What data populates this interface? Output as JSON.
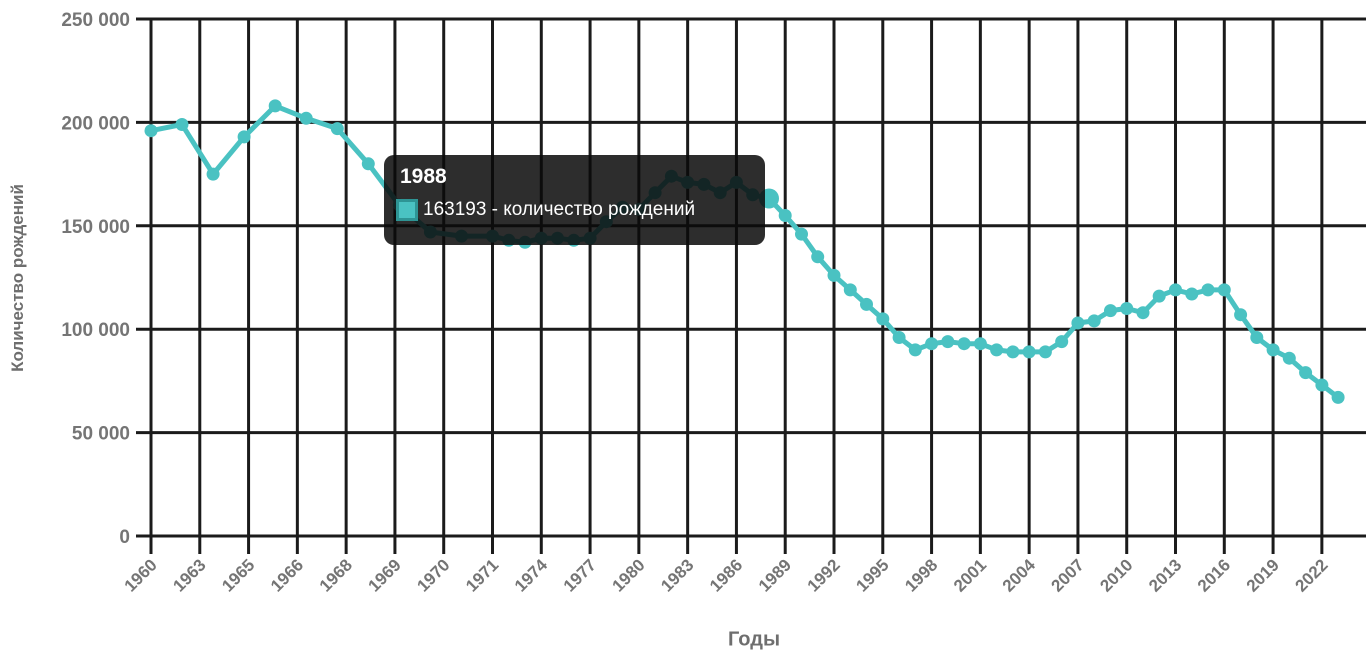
{
  "chart_data": {
    "type": "line",
    "title": "",
    "xlabel": "Годы",
    "ylabel": "Количество рождений",
    "series": [
      {
        "name": "количество рождений",
        "x": [
          1960,
          1961,
          1962,
          1963,
          1964,
          1965,
          1966,
          1967,
          1968,
          1969,
          1970,
          1971,
          1972,
          1973,
          1974,
          1975,
          1976,
          1977,
          1978,
          1979,
          1980,
          1981,
          1982,
          1983,
          1984,
          1985,
          1986,
          1987,
          1988,
          1989,
          1990,
          1991,
          1992,
          1993,
          1994,
          1995,
          1996,
          1997,
          1998,
          1999,
          2000,
          2001,
          2002,
          2003,
          2004,
          2005,
          2006,
          2007,
          2008,
          2009,
          2010,
          2011,
          2012,
          2013,
          2014,
          2015,
          2016,
          2017,
          2018,
          2019,
          2020,
          2021,
          2022,
          2023
        ],
        "values": [
          196000,
          199000,
          175000,
          193000,
          208000,
          202000,
          197000,
          180000,
          160000,
          147000,
          145000,
          145000,
          143000,
          142000,
          144000,
          144000,
          143000,
          144000,
          152000,
          159000,
          158000,
          166000,
          174000,
          171000,
          170000,
          166000,
          171000,
          165000,
          163193,
          155000,
          146000,
          135000,
          126000,
          119000,
          112000,
          105000,
          96000,
          90000,
          93000,
          94000,
          93000,
          93000,
          90000,
          89000,
          89000,
          89000,
          94000,
          103000,
          104000,
          109000,
          110000,
          108000,
          116000,
          119000,
          117000,
          119000,
          119000,
          107000,
          96000,
          90000,
          86000,
          79000,
          73000,
          67000
        ]
      }
    ],
    "ylim": [
      0,
      250000
    ],
    "y_tick_values": [
      0,
      50000,
      100000,
      150000,
      200000,
      250000
    ],
    "y_tick_labels": [
      "0",
      "50 000",
      "100 000",
      "150 000",
      "200 000",
      "250 000"
    ],
    "x_tick_labels": [
      "1960",
      "1963",
      "1965",
      "1966",
      "1968",
      "1969",
      "1970",
      "1971",
      "1974",
      "1977",
      "1980",
      "1983",
      "1986",
      "1989",
      "1992",
      "1995",
      "1998",
      "2001",
      "2004",
      "2007",
      "2010",
      "2013",
      "2016",
      "2019",
      "2022"
    ],
    "grid": true,
    "legend_position": "none",
    "highlight": {
      "year": 1988,
      "value": 163193
    },
    "line_color": "#4AC2C2",
    "grid_color": "#1b1b1b",
    "tick_label_color": "#757575",
    "axis_title_color": "#6e6e6e"
  },
  "tooltip": {
    "title": "1988",
    "value_text": "163193 - количество рождений",
    "bg": "rgba(10,10,10,0.86)",
    "swatch_color": "#4AC2C2",
    "swatch_border": "#2E9494"
  }
}
